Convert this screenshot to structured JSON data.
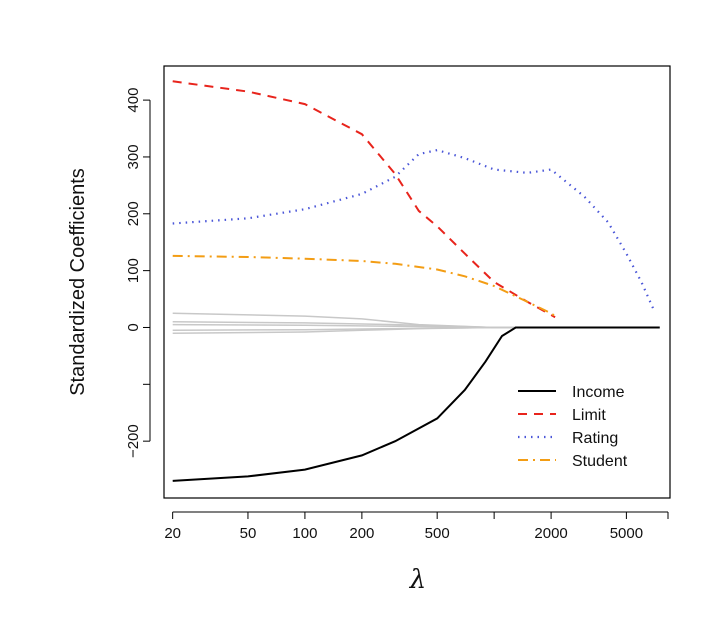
{
  "chart_data": {
    "type": "line",
    "title": "",
    "xlabel": "λ",
    "ylabel": "Standardized Coefficients",
    "x_scale": "log",
    "xlim": [
      18,
      8500
    ],
    "ylim": [
      -300,
      460
    ],
    "x_ticks": [
      20,
      50,
      100,
      200,
      500,
      1000,
      2000,
      5000
    ],
    "x_tick_labels": [
      "20",
      "50",
      "100",
      "200",
      "500",
      "",
      "2000",
      "5000"
    ],
    "y_ticks": [
      -200,
      -100,
      0,
      100,
      200,
      300,
      400
    ],
    "y_tick_labels": [
      "−200",
      "",
      "0",
      "100",
      "200",
      "300",
      "400"
    ],
    "grid": false,
    "legend_position": "bottom-right",
    "series": [
      {
        "name": "Income",
        "color": "#000000",
        "dash": "solid",
        "x": [
          20,
          50,
          100,
          200,
          300,
          500,
          700,
          900,
          1100,
          1300,
          2000,
          5000,
          7500
        ],
        "y": [
          -270,
          -262,
          -250,
          -225,
          -200,
          -160,
          -110,
          -60,
          -15,
          0,
          0,
          0,
          0
        ]
      },
      {
        "name": "Limit",
        "color": "#e8241c",
        "dash": "dashed",
        "x": [
          20,
          50,
          100,
          200,
          300,
          400,
          500,
          700,
          1000,
          1500,
          2000,
          2100
        ],
        "y": [
          433,
          415,
          393,
          340,
          270,
          205,
          178,
          130,
          80,
          45,
          22,
          18
        ]
      },
      {
        "name": "Rating",
        "color": "#4a56d8",
        "dash": "dotted",
        "x": [
          20,
          50,
          100,
          200,
          300,
          400,
          500,
          700,
          1000,
          1500,
          2000,
          3000,
          4000,
          5000,
          6000,
          7000
        ],
        "y": [
          183,
          192,
          208,
          235,
          265,
          305,
          312,
          298,
          278,
          272,
          278,
          230,
          185,
          130,
          80,
          30
        ]
      },
      {
        "name": "Student",
        "color": "#f39d14",
        "dash": "dashdot",
        "x": [
          20,
          50,
          100,
          200,
          300,
          500,
          700,
          1000,
          1500,
          2000,
          2100
        ],
        "y": [
          126,
          124,
          121,
          117,
          112,
          102,
          90,
          73,
          45,
          25,
          20
        ]
      }
    ],
    "other_series": {
      "color": "#c8c8c8",
      "lines": [
        {
          "x": [
            20,
            100,
            200,
            400,
            1000,
            7500
          ],
          "y": [
            25,
            20,
            15,
            5,
            0,
            0
          ]
        },
        {
          "x": [
            20,
            100,
            300,
            600,
            1000,
            7500
          ],
          "y": [
            10,
            8,
            5,
            2,
            0,
            0
          ]
        },
        {
          "x": [
            20,
            100,
            300,
            600,
            1000,
            7500
          ],
          "y": [
            5,
            4,
            2,
            1,
            0,
            0
          ]
        },
        {
          "x": [
            20,
            100,
            300,
            600,
            1000,
            7500
          ],
          "y": [
            -5,
            -4,
            -2,
            -1,
            0,
            0
          ]
        },
        {
          "x": [
            20,
            100,
            200,
            400,
            1000,
            7500
          ],
          "y": [
            -10,
            -8,
            -5,
            -2,
            0,
            0
          ]
        }
      ]
    }
  }
}
